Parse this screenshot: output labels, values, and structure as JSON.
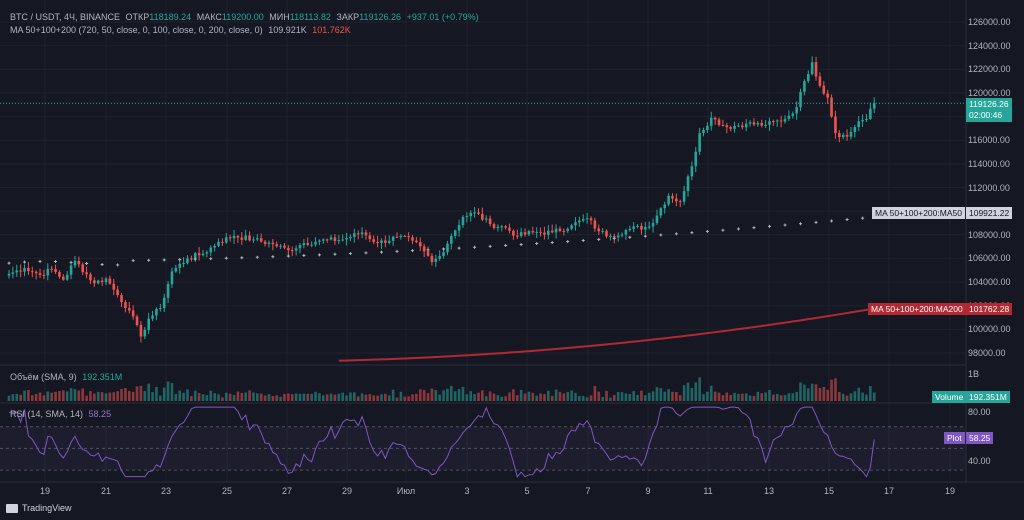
{
  "header": {
    "symbol": "BTC / USDT, 4Ч, BINANCE",
    "open_label": "ОТКР",
    "open": "118189.24",
    "high_label": "МАКС",
    "high": "119200.00",
    "low_label": "МИН",
    "low": "118113.82",
    "close_label": "ЗАКР",
    "close": "119126.26",
    "change": "+937.01 (+0.79%)"
  },
  "ma_legend": {
    "label": "MA 50+100+200 (720, 50, close, 0, 100, close, 0, 200, close, 0)",
    "v1": "109.921K",
    "v2": "101.762K"
  },
  "volume_legend": {
    "label": "Объём (SMA, 9)",
    "value": "192.351M"
  },
  "rsi_legend": {
    "label": "RSI (14, SMA, 14)",
    "value": "58.25"
  },
  "price_axis": [
    "126000.00",
    "124000.00",
    "122000.00",
    "120000.00",
    "118000.00",
    "116000.00",
    "114000.00",
    "112000.00",
    "110000.00",
    "108000.00",
    "106000.00",
    "104000.00",
    "102000.00",
    "100000.00",
    "98000.00"
  ],
  "price_tag": {
    "price": "119126.26",
    "countdown": "02:00:46"
  },
  "ma50_tag": {
    "label": "MA 50+100+200:MA50",
    "value": "109921.22"
  },
  "ma200_tag": {
    "label": "MA 50+100+200:MA200",
    "value": "101762.28"
  },
  "volume_axis": {
    "tick": "1B",
    "tag_label": "Volume",
    "tag_value": "192.351M"
  },
  "rsi_axis": {
    "ticks": [
      "80.00",
      "40.00"
    ],
    "tag_label": "Plot",
    "tag_value": "58.25"
  },
  "time_axis": [
    {
      "label": "19",
      "x": 45
    },
    {
      "label": "21",
      "x": 106
    },
    {
      "label": "23",
      "x": 166
    },
    {
      "label": "25",
      "x": 227
    },
    {
      "label": "27",
      "x": 287
    },
    {
      "label": "29",
      "x": 347
    },
    {
      "label": "Июл",
      "x": 406
    },
    {
      "label": "3",
      "x": 467
    },
    {
      "label": "5",
      "x": 527
    },
    {
      "label": "7",
      "x": 588
    },
    {
      "label": "9",
      "x": 648
    },
    {
      "label": "11",
      "x": 708
    },
    {
      "label": "13",
      "x": 769
    },
    {
      "label": "15",
      "x": 829
    },
    {
      "label": "17",
      "x": 889
    },
    {
      "label": "19",
      "x": 950
    }
  ],
  "footer": {
    "brand": "TradingView"
  },
  "colors": {
    "up": "#26a69a",
    "down": "#ef5350",
    "ma50": "#b2b5be",
    "ma200": "#b22833",
    "rsi": "#7e57c2",
    "bg": "#151822"
  },
  "chart_data": {
    "type": "candlestick",
    "symbol": "BTC / USDT",
    "interval": "4Ч",
    "y_range": [
      97000,
      127000
    ],
    "anchors": [
      {
        "t": 0,
        "p": 104700
      },
      {
        "t": 4,
        "p": 105200
      },
      {
        "t": 8,
        "p": 104600
      },
      {
        "t": 11,
        "p": 105100
      },
      {
        "t": 14,
        "p": 104200
      },
      {
        "t": 17,
        "p": 105800
      },
      {
        "t": 22,
        "p": 103900
      },
      {
        "t": 25,
        "p": 104300
      },
      {
        "t": 28,
        "p": 102900
      },
      {
        "t": 31,
        "p": 101600
      },
      {
        "t": 34,
        "p": 99400
      },
      {
        "t": 36,
        "p": 100900
      },
      {
        "t": 39,
        "p": 101800
      },
      {
        "t": 42,
        "p": 104900
      },
      {
        "t": 46,
        "p": 106000
      },
      {
        "t": 50,
        "p": 106400
      },
      {
        "t": 54,
        "p": 107400
      },
      {
        "t": 58,
        "p": 107900
      },
      {
        "t": 63,
        "p": 107600
      },
      {
        "t": 68,
        "p": 107200
      },
      {
        "t": 72,
        "p": 106700
      },
      {
        "t": 76,
        "p": 107300
      },
      {
        "t": 80,
        "p": 107500
      },
      {
        "t": 86,
        "p": 107600
      },
      {
        "t": 91,
        "p": 108200
      },
      {
        "t": 95,
        "p": 107300
      },
      {
        "t": 100,
        "p": 107800
      },
      {
        "t": 104,
        "p": 107500
      },
      {
        "t": 107,
        "p": 106600
      },
      {
        "t": 109,
        "p": 105700
      },
      {
        "t": 111,
        "p": 106200
      },
      {
        "t": 114,
        "p": 107900
      },
      {
        "t": 117,
        "p": 109500
      },
      {
        "t": 120,
        "p": 109900
      },
      {
        "t": 124,
        "p": 108900
      },
      {
        "t": 128,
        "p": 108600
      },
      {
        "t": 131,
        "p": 107900
      },
      {
        "t": 135,
        "p": 108200
      },
      {
        "t": 140,
        "p": 108200
      },
      {
        "t": 145,
        "p": 108800
      },
      {
        "t": 149,
        "p": 109400
      },
      {
        "t": 152,
        "p": 108300
      },
      {
        "t": 155,
        "p": 107900
      },
      {
        "t": 160,
        "p": 108500
      },
      {
        "t": 165,
        "p": 108700
      },
      {
        "t": 170,
        "p": 111300
      },
      {
        "t": 173,
        "p": 110800
      },
      {
        "t": 176,
        "p": 113800
      },
      {
        "t": 178,
        "p": 116600
      },
      {
        "t": 181,
        "p": 117900
      },
      {
        "t": 185,
        "p": 117100
      },
      {
        "t": 190,
        "p": 117400
      },
      {
        "t": 195,
        "p": 117300
      },
      {
        "t": 200,
        "p": 117800
      },
      {
        "t": 203,
        "p": 118800
      },
      {
        "t": 205,
        "p": 121000
      },
      {
        "t": 207,
        "p": 122600
      },
      {
        "t": 209,
        "p": 120600
      },
      {
        "t": 211,
        "p": 119600
      },
      {
        "t": 213,
        "p": 116600
      },
      {
        "t": 216,
        "p": 116300
      },
      {
        "t": 219,
        "p": 117600
      },
      {
        "t": 221,
        "p": 117800
      },
      {
        "t": 223,
        "p": 119130
      }
    ],
    "ma50": {
      "start": 105700,
      "end": 109921.22,
      "last": 109921.22
    },
    "ma200": {
      "start": 97300,
      "end": 101762.28,
      "last": 101762.28
    },
    "volume_last": "192.351M",
    "rsi": {
      "levels": [
        70,
        50,
        30
      ],
      "last": 58.25,
      "y_range": [
        20,
        90
      ]
    }
  }
}
